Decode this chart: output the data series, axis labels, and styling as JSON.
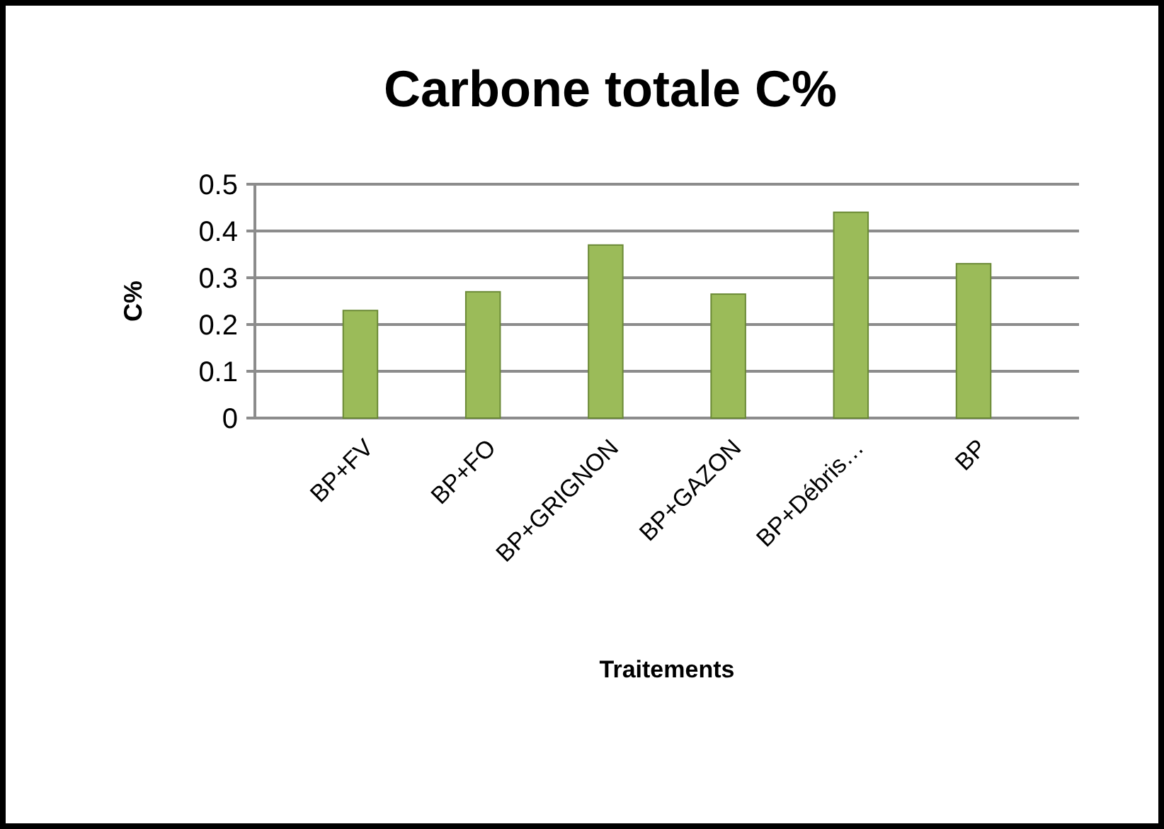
{
  "chart_data": {
    "type": "bar",
    "title": "Carbone totale C%",
    "xlabel": "Traitements",
    "ylabel": "C%",
    "categories": [
      "BP+FV",
      "BP+FO",
      "BP+GRIGNON",
      "BP+GAZON",
      "BP+Débris…",
      "BP"
    ],
    "series": [
      {
        "color": "#9bbb59",
        "values": [
          0.23,
          0.27,
          0.37,
          0.265,
          0.44,
          0.33
        ]
      }
    ],
    "ylim": [
      0,
      0.5
    ],
    "yticks": [
      0,
      0.1,
      0.2,
      0.3,
      0.4,
      0.5
    ],
    "grid": "y"
  }
}
